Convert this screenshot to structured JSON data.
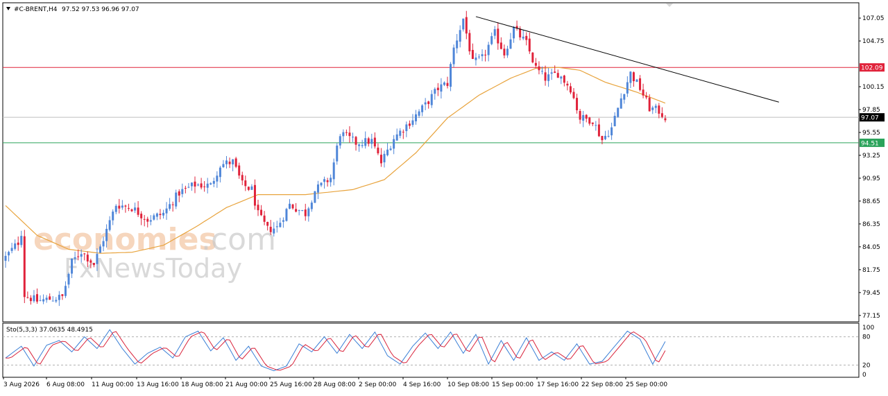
{
  "header": {
    "symbol_label": "#C-BRENT,H4",
    "ohlc_label": "97.52 97.53 96.96 97.07"
  },
  "watermark": {
    "brand_part1": "economies",
    "brand_part2": ".com",
    "brand_line2": "FxNewsToday"
  },
  "stoch": {
    "label": "Sto(5,3,3) 37.0635 48.4915",
    "scale_labels": [
      "100",
      "80",
      "20",
      "0"
    ]
  },
  "chart_data": [
    {
      "type": "candlestick",
      "title": "#C-BRENT,H4",
      "y_ticks": [
        "107.05",
        "104.75",
        "100.15",
        "97.85",
        "95.55",
        "93.25",
        "90.95",
        "88.65",
        "86.35",
        "84.05",
        "81.75",
        "79.45",
        "77.15"
      ],
      "ylim": [
        77.15,
        108.5
      ],
      "x_ticks": [
        "3 Aug 2026",
        "6 Aug 08:00",
        "11 Aug 00:00",
        "13 Aug 16:00",
        "18 Aug 08:00",
        "21 Aug 00:00",
        "25 Aug 16:00",
        "28 Aug 08:00",
        "2 Sep 00:00",
        "4 Sep 16:00",
        "10 Sep 08:00",
        "15 Sep 00:00",
        "17 Sep 16:00",
        "22 Sep 08:00",
        "25 Sep 00:00"
      ],
      "price_tags": {
        "resistance": {
          "value": 102.09,
          "label": "102.09",
          "color": "#e0223a"
        },
        "current": {
          "value": 97.07,
          "label": "97.07",
          "color": "#000000"
        },
        "support": {
          "value": 94.51,
          "label": "94.51",
          "color": "#2aa35a"
        }
      },
      "colors": {
        "up": "#4f86d8",
        "down": "#e0223a",
        "ma": "#e8a33c",
        "trend": "#000000"
      },
      "candle_count": 210,
      "close_path": [
        [
          0,
          83.0
        ],
        [
          4,
          84.5
        ],
        [
          5,
          85.5
        ],
        [
          6,
          79.2
        ],
        [
          10,
          78.6
        ],
        [
          18,
          79.0
        ],
        [
          21,
          82.5
        ],
        [
          24,
          83.6
        ],
        [
          28,
          82.3
        ],
        [
          32,
          85.7
        ],
        [
          35,
          88.3
        ],
        [
          40,
          88.0
        ],
        [
          45,
          86.8
        ],
        [
          50,
          87.4
        ],
        [
          55,
          89.5
        ],
        [
          60,
          90.3
        ],
        [
          65,
          90.2
        ],
        [
          68,
          92.3
        ],
        [
          72,
          92.6
        ],
        [
          75,
          90.3
        ],
        [
          78,
          89.8
        ],
        [
          80,
          87.3
        ],
        [
          83,
          85.8
        ],
        [
          86,
          86.0
        ],
        [
          90,
          88.3
        ],
        [
          95,
          87.4
        ],
        [
          98,
          89.7
        ],
        [
          103,
          91.0
        ],
        [
          106,
          95.5
        ],
        [
          111,
          94.5
        ],
        [
          116,
          94.7
        ],
        [
          119,
          92.5
        ],
        [
          123,
          95.0
        ],
        [
          128,
          96.6
        ],
        [
          133,
          98.3
        ],
        [
          137,
          100.0
        ],
        [
          140,
          100.5
        ],
        [
          142,
          104.0
        ],
        [
          145,
          107.0
        ],
        [
          148,
          102.5
        ],
        [
          151,
          103.0
        ],
        [
          155,
          105.5
        ],
        [
          158,
          103.5
        ],
        [
          161,
          106.0
        ],
        [
          165,
          104.5
        ],
        [
          168,
          102.0
        ],
        [
          171,
          101.0
        ],
        [
          175,
          101.5
        ],
        [
          179,
          100.0
        ],
        [
          182,
          97.0
        ],
        [
          186,
          96.8
        ],
        [
          189,
          94.8
        ],
        [
          192,
          96.0
        ],
        [
          195,
          99.0
        ],
        [
          198,
          101.5
        ],
        [
          201,
          100.0
        ],
        [
          204,
          98.0
        ],
        [
          207,
          97.7
        ],
        [
          209,
          97.07
        ]
      ],
      "ma_path": [
        [
          0,
          88.2
        ],
        [
          10,
          85.2
        ],
        [
          20,
          83.8
        ],
        [
          30,
          83.4
        ],
        [
          40,
          83.5
        ],
        [
          50,
          84.2
        ],
        [
          60,
          86.0
        ],
        [
          70,
          88.0
        ],
        [
          80,
          89.3
        ],
        [
          95,
          89.3
        ],
        [
          110,
          89.8
        ],
        [
          120,
          90.8
        ],
        [
          130,
          93.5
        ],
        [
          140,
          97.0
        ],
        [
          150,
          99.3
        ],
        [
          160,
          101.0
        ],
        [
          168,
          102.0
        ],
        [
          175,
          102.1
        ],
        [
          182,
          101.8
        ],
        [
          190,
          100.6
        ],
        [
          200,
          99.6
        ],
        [
          209,
          98.5
        ]
      ],
      "trendline": [
        [
          149,
          107.2
        ],
        [
          245,
          98.6
        ]
      ],
      "stoch_path": [
        [
          0,
          35
        ],
        [
          5,
          60
        ],
        [
          9,
          18
        ],
        [
          13,
          62
        ],
        [
          17,
          72
        ],
        [
          21,
          48
        ],
        [
          25,
          80
        ],
        [
          29,
          55
        ],
        [
          33,
          95
        ],
        [
          37,
          55
        ],
        [
          41,
          22
        ],
        [
          45,
          45
        ],
        [
          49,
          58
        ],
        [
          53,
          35
        ],
        [
          57,
          80
        ],
        [
          61,
          92
        ],
        [
          65,
          50
        ],
        [
          69,
          78
        ],
        [
          73,
          30
        ],
        [
          77,
          60
        ],
        [
          81,
          18
        ],
        [
          85,
          8
        ],
        [
          89,
          18
        ],
        [
          93,
          65
        ],
        [
          97,
          48
        ],
        [
          101,
          80
        ],
        [
          105,
          45
        ],
        [
          109,
          85
        ],
        [
          113,
          55
        ],
        [
          117,
          90
        ],
        [
          121,
          40
        ],
        [
          125,
          22
        ],
        [
          129,
          60
        ],
        [
          133,
          88
        ],
        [
          137,
          55
        ],
        [
          141,
          90
        ],
        [
          145,
          45
        ],
        [
          149,
          85
        ],
        [
          153,
          22
        ],
        [
          157,
          72
        ],
        [
          161,
          30
        ],
        [
          165,
          78
        ],
        [
          169,
          30
        ],
        [
          173,
          48
        ],
        [
          177,
          30
        ],
        [
          181,
          65
        ],
        [
          185,
          22
        ],
        [
          189,
          28
        ],
        [
          193,
          60
        ],
        [
          197,
          92
        ],
        [
          201,
          75
        ],
        [
          205,
          22
        ],
        [
          209,
          70
        ],
        [
          213,
          55
        ],
        [
          216,
          45
        ]
      ]
    }
  ]
}
